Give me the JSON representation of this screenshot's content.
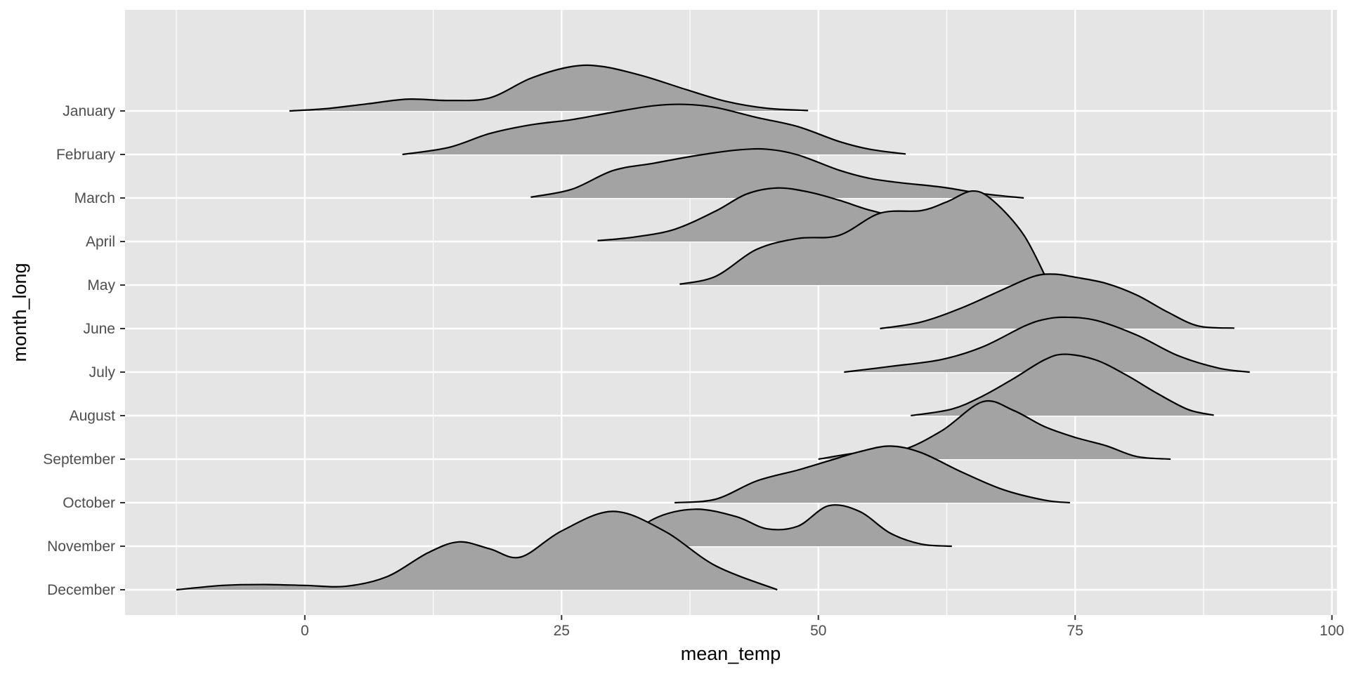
{
  "chart_data": {
    "type": "ridgeline",
    "xlabel": "mean_temp",
    "ylabel": "month_long",
    "xlim": [
      -17.5,
      100.5
    ],
    "x_ticks": [
      0,
      25,
      50,
      75,
      100
    ],
    "grid": true,
    "fill_color": "#a3a3a3",
    "line_color": "#000000",
    "panel_color": "#e5e5e5",
    "grid_color": "#ffffff",
    "categories": [
      "January",
      "February",
      "March",
      "April",
      "May",
      "June",
      "July",
      "August",
      "September",
      "October",
      "November",
      "December"
    ],
    "series": [
      {
        "name": "January",
        "x": [
          -1.5,
          2,
          6,
          10,
          14,
          18,
          22,
          26,
          29,
          33,
          37,
          41,
          45,
          49
        ],
        "y": [
          0.0,
          0.05,
          0.16,
          0.27,
          0.24,
          0.3,
          0.75,
          1.02,
          1.02,
          0.8,
          0.5,
          0.22,
          0.06,
          0.01
        ]
      },
      {
        "name": "February",
        "x": [
          9.5,
          14,
          18,
          22,
          26,
          30,
          34,
          37,
          40,
          44,
          48,
          52,
          55,
          58.5
        ],
        "y": [
          0.0,
          0.16,
          0.48,
          0.68,
          0.8,
          0.97,
          1.12,
          1.15,
          1.08,
          0.85,
          0.64,
          0.3,
          0.12,
          0.01
        ]
      },
      {
        "name": "March",
        "x": [
          22,
          26,
          30,
          34,
          38,
          42,
          45,
          48,
          52,
          55,
          58,
          62,
          66,
          70
        ],
        "y": [
          0.02,
          0.2,
          0.63,
          0.8,
          0.97,
          1.1,
          1.12,
          0.99,
          0.64,
          0.45,
          0.35,
          0.25,
          0.1,
          0.0
        ]
      },
      {
        "name": "April",
        "x": [
          28.5,
          32,
          36,
          40,
          43,
          46,
          49,
          52,
          55,
          58,
          62,
          65,
          68,
          70
        ],
        "y": [
          0.02,
          0.1,
          0.28,
          0.7,
          1.09,
          1.23,
          1.14,
          0.95,
          0.72,
          0.56,
          0.42,
          0.25,
          0.1,
          0.0
        ]
      },
      {
        "name": "May",
        "x": [
          36.5,
          40,
          44,
          48,
          52,
          56,
          60,
          62.5,
          65,
          67,
          70,
          72.5
        ],
        "y": [
          0.02,
          0.2,
          0.82,
          1.07,
          1.14,
          1.65,
          1.71,
          1.91,
          2.16,
          1.94,
          1.15,
          0.0
        ]
      },
      {
        "name": "June",
        "x": [
          56,
          60,
          64,
          68,
          71,
          73,
          75,
          78,
          81,
          84,
          87,
          90.5
        ],
        "y": [
          0.0,
          0.15,
          0.48,
          0.9,
          1.2,
          1.25,
          1.18,
          1.04,
          0.77,
          0.38,
          0.06,
          0.01
        ]
      },
      {
        "name": "July",
        "x": [
          52.5,
          57,
          62,
          66,
          70,
          72,
          74,
          77,
          81,
          85,
          89,
          92
        ],
        "y": [
          0.0,
          0.13,
          0.29,
          0.58,
          1.05,
          1.21,
          1.26,
          1.19,
          0.85,
          0.38,
          0.09,
          0.0
        ]
      },
      {
        "name": "August",
        "x": [
          59,
          63,
          66,
          69,
          72,
          74,
          77,
          80,
          83,
          86,
          88.5
        ],
        "y": [
          0.0,
          0.15,
          0.45,
          0.85,
          1.28,
          1.41,
          1.28,
          0.93,
          0.51,
          0.14,
          0.01
        ]
      },
      {
        "name": "September",
        "x": [
          50,
          54,
          58,
          62,
          66,
          69,
          72,
          75,
          78,
          81,
          84.3
        ],
        "y": [
          0.0,
          0.15,
          0.2,
          0.65,
          1.32,
          1.12,
          0.75,
          0.5,
          0.31,
          0.06,
          0.0
        ]
      },
      {
        "name": "October",
        "x": [
          36,
          40,
          44,
          48,
          51,
          54,
          57,
          60,
          64,
          68,
          72,
          74.5
        ],
        "y": [
          0.0,
          0.08,
          0.5,
          0.75,
          0.96,
          1.17,
          1.3,
          1.15,
          0.7,
          0.3,
          0.06,
          0.0
        ]
      },
      {
        "name": "November",
        "x": [
          30.5,
          34,
          38,
          42,
          45,
          48,
          51,
          54,
          57,
          60,
          63
        ],
        "y": [
          0.0,
          0.63,
          0.85,
          0.68,
          0.4,
          0.46,
          0.93,
          0.8,
          0.3,
          0.05,
          0.0
        ]
      },
      {
        "name": "December",
        "x": [
          -12.5,
          -8,
          -4,
          0,
          4,
          8,
          12,
          15,
          18,
          21,
          25,
          30,
          35,
          40,
          46
        ],
        "y": [
          0.0,
          0.1,
          0.12,
          0.1,
          0.08,
          0.3,
          0.85,
          1.1,
          0.94,
          0.75,
          1.35,
          1.8,
          1.35,
          0.55,
          0.0
        ]
      }
    ]
  }
}
